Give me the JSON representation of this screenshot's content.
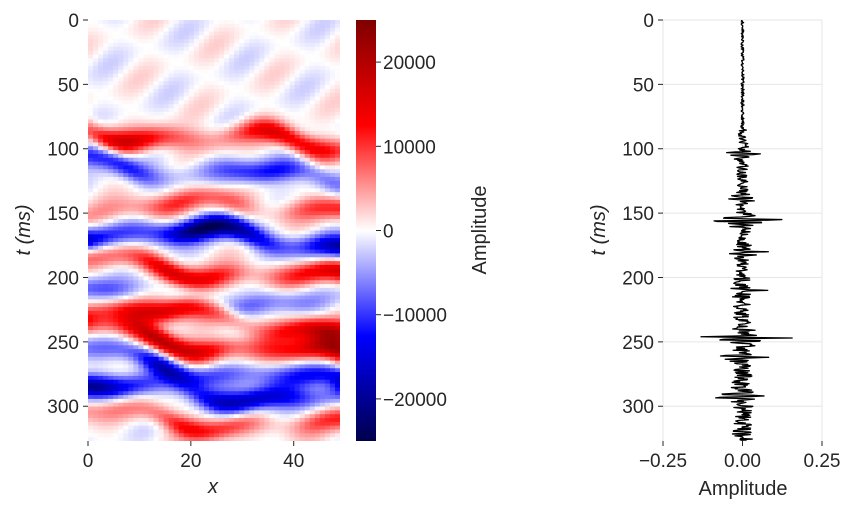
{
  "chart_data": [
    {
      "type": "heatmap",
      "title": "",
      "xlabel": "x",
      "ylabel": "t (ms)",
      "xlim": [
        0,
        49
      ],
      "ylim": [
        327,
        0
      ],
      "x_ticks": [
        "0",
        "20",
        "40"
      ],
      "y_ticks": [
        "0",
        "50",
        "100",
        "150",
        "200",
        "250",
        "300"
      ],
      "colormap": "seismic",
      "colorbar": {
        "label": "Amplitude",
        "range": [
          -25000,
          25000
        ],
        "ticks": [
          "20000",
          "10000",
          "0",
          "−10000",
          "−20000"
        ],
        "colors": [
          "#00004c",
          "#0000ff",
          "#ffffff",
          "#ff0000",
          "#7f0000"
        ]
      },
      "events": [
        {
          "t": 92,
          "amplitude": 14000,
          "slope": 0.25
        },
        {
          "t": 118,
          "amplitude": -11000,
          "slope": 0.35
        },
        {
          "t": 145,
          "amplitude": 10000,
          "slope": -0.1
        },
        {
          "t": 168,
          "amplitude": -22000,
          "slope": 0.2
        },
        {
          "t": 195,
          "amplitude": 15000,
          "slope": 0.35
        },
        {
          "t": 215,
          "amplitude": -7000,
          "slope": 0.15
        },
        {
          "t": 232,
          "amplitude": 16000,
          "slope": 0.3
        },
        {
          "t": 252,
          "amplitude": 18000,
          "slope": 0.5
        },
        {
          "t": 272,
          "amplitude": -14000,
          "slope": 0.55
        },
        {
          "t": 290,
          "amplitude": -17000,
          "slope": 0.1
        },
        {
          "t": 312,
          "amplitude": 11000,
          "slope": 0.25
        }
      ]
    },
    {
      "type": "line",
      "title": "",
      "xlabel": "Amplitude",
      "ylabel": "t (ms)",
      "xlim": [
        -0.25,
        0.25
      ],
      "ylim": [
        327,
        0
      ],
      "x_ticks": [
        "−0.25",
        "0.00",
        "0.25"
      ],
      "y_ticks": [
        "0",
        "50",
        "100",
        "150",
        "200",
        "250",
        "300"
      ],
      "grid": true,
      "line_color": "#000000",
      "spikes": [
        {
          "t": 104,
          "amplitude": 0.06
        },
        {
          "t": 138,
          "amplitude": 0.05
        },
        {
          "t": 155,
          "amplitude": 0.22
        },
        {
          "t": 180,
          "amplitude": 0.07
        },
        {
          "t": 210,
          "amplitude": 0.05
        },
        {
          "t": 247,
          "amplitude": 0.15
        },
        {
          "t": 262,
          "amplitude": 0.09
        },
        {
          "t": 292,
          "amplitude": 0.1
        }
      ]
    }
  ]
}
